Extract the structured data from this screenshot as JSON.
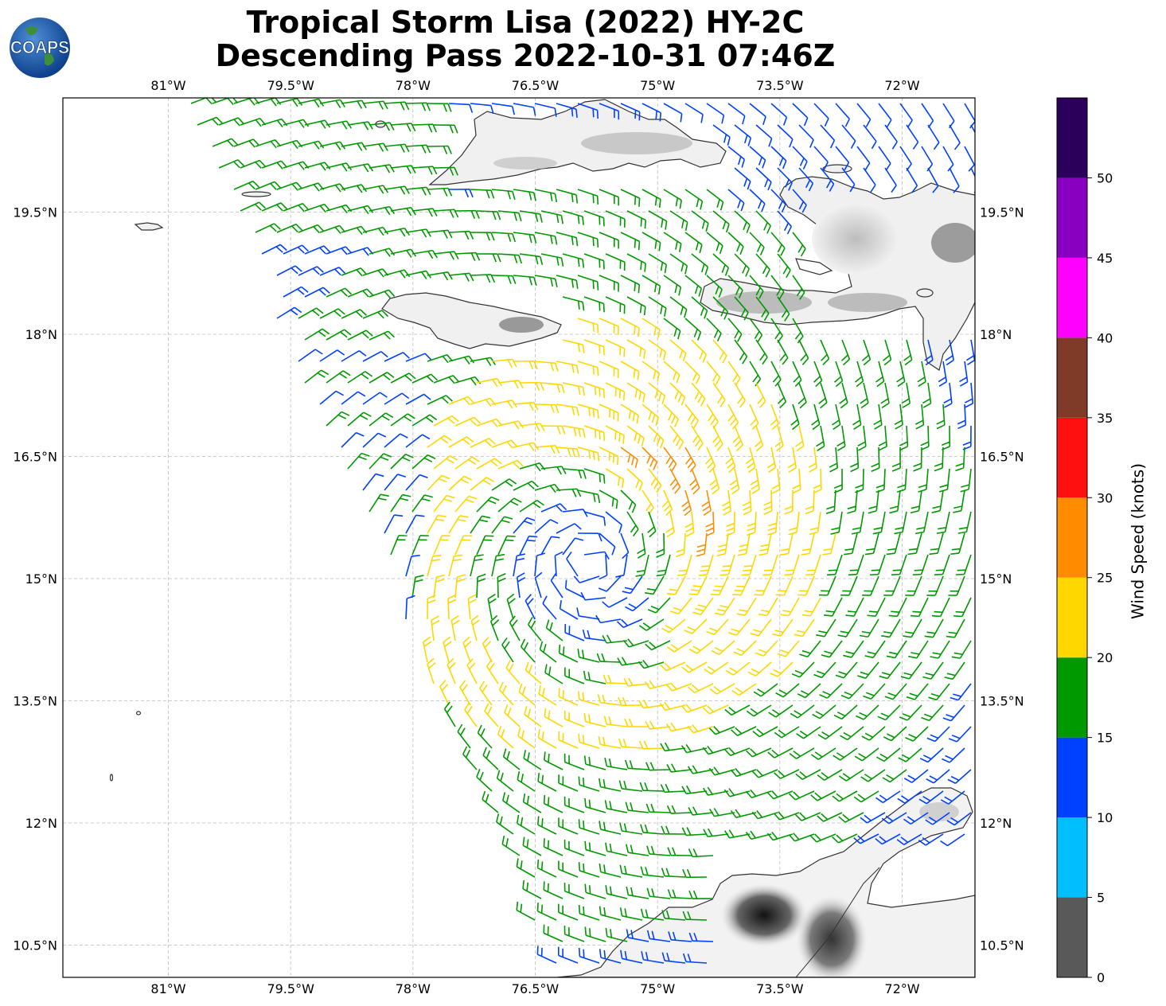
{
  "title": {
    "line1": "Tropical Storm Lisa (2022) HY-2C",
    "line2": "Descending Pass 2022-10-31 07:46Z"
  },
  "logo": {
    "text": "COAPS",
    "icon": "coaps-globe-logo"
  },
  "map": {
    "lon_ticks": [
      "81°W",
      "79.5°W",
      "78°W",
      "76.5°W",
      "75°W",
      "73.5°W",
      "72°W"
    ],
    "lat_ticks": [
      "19.5°N",
      "18°N",
      "16.5°N",
      "15°N",
      "13.5°N",
      "12°N",
      "10.5°N"
    ],
    "storm_center": {
      "lon": -75.85,
      "lat": 15.2
    }
  },
  "colorbar": {
    "label": "Wind Speed (knots)",
    "ticks": [
      "0",
      "5",
      "10",
      "15",
      "20",
      "25",
      "30",
      "35",
      "40",
      "45",
      "50"
    ],
    "colors": [
      "#595959",
      "#00bfff",
      "#0040ff",
      "#009900",
      "#ffd700",
      "#ff8c00",
      "#ff1010",
      "#7f3b28",
      "#ff00ff",
      "#8a00c0",
      "#2a005a"
    ]
  }
}
